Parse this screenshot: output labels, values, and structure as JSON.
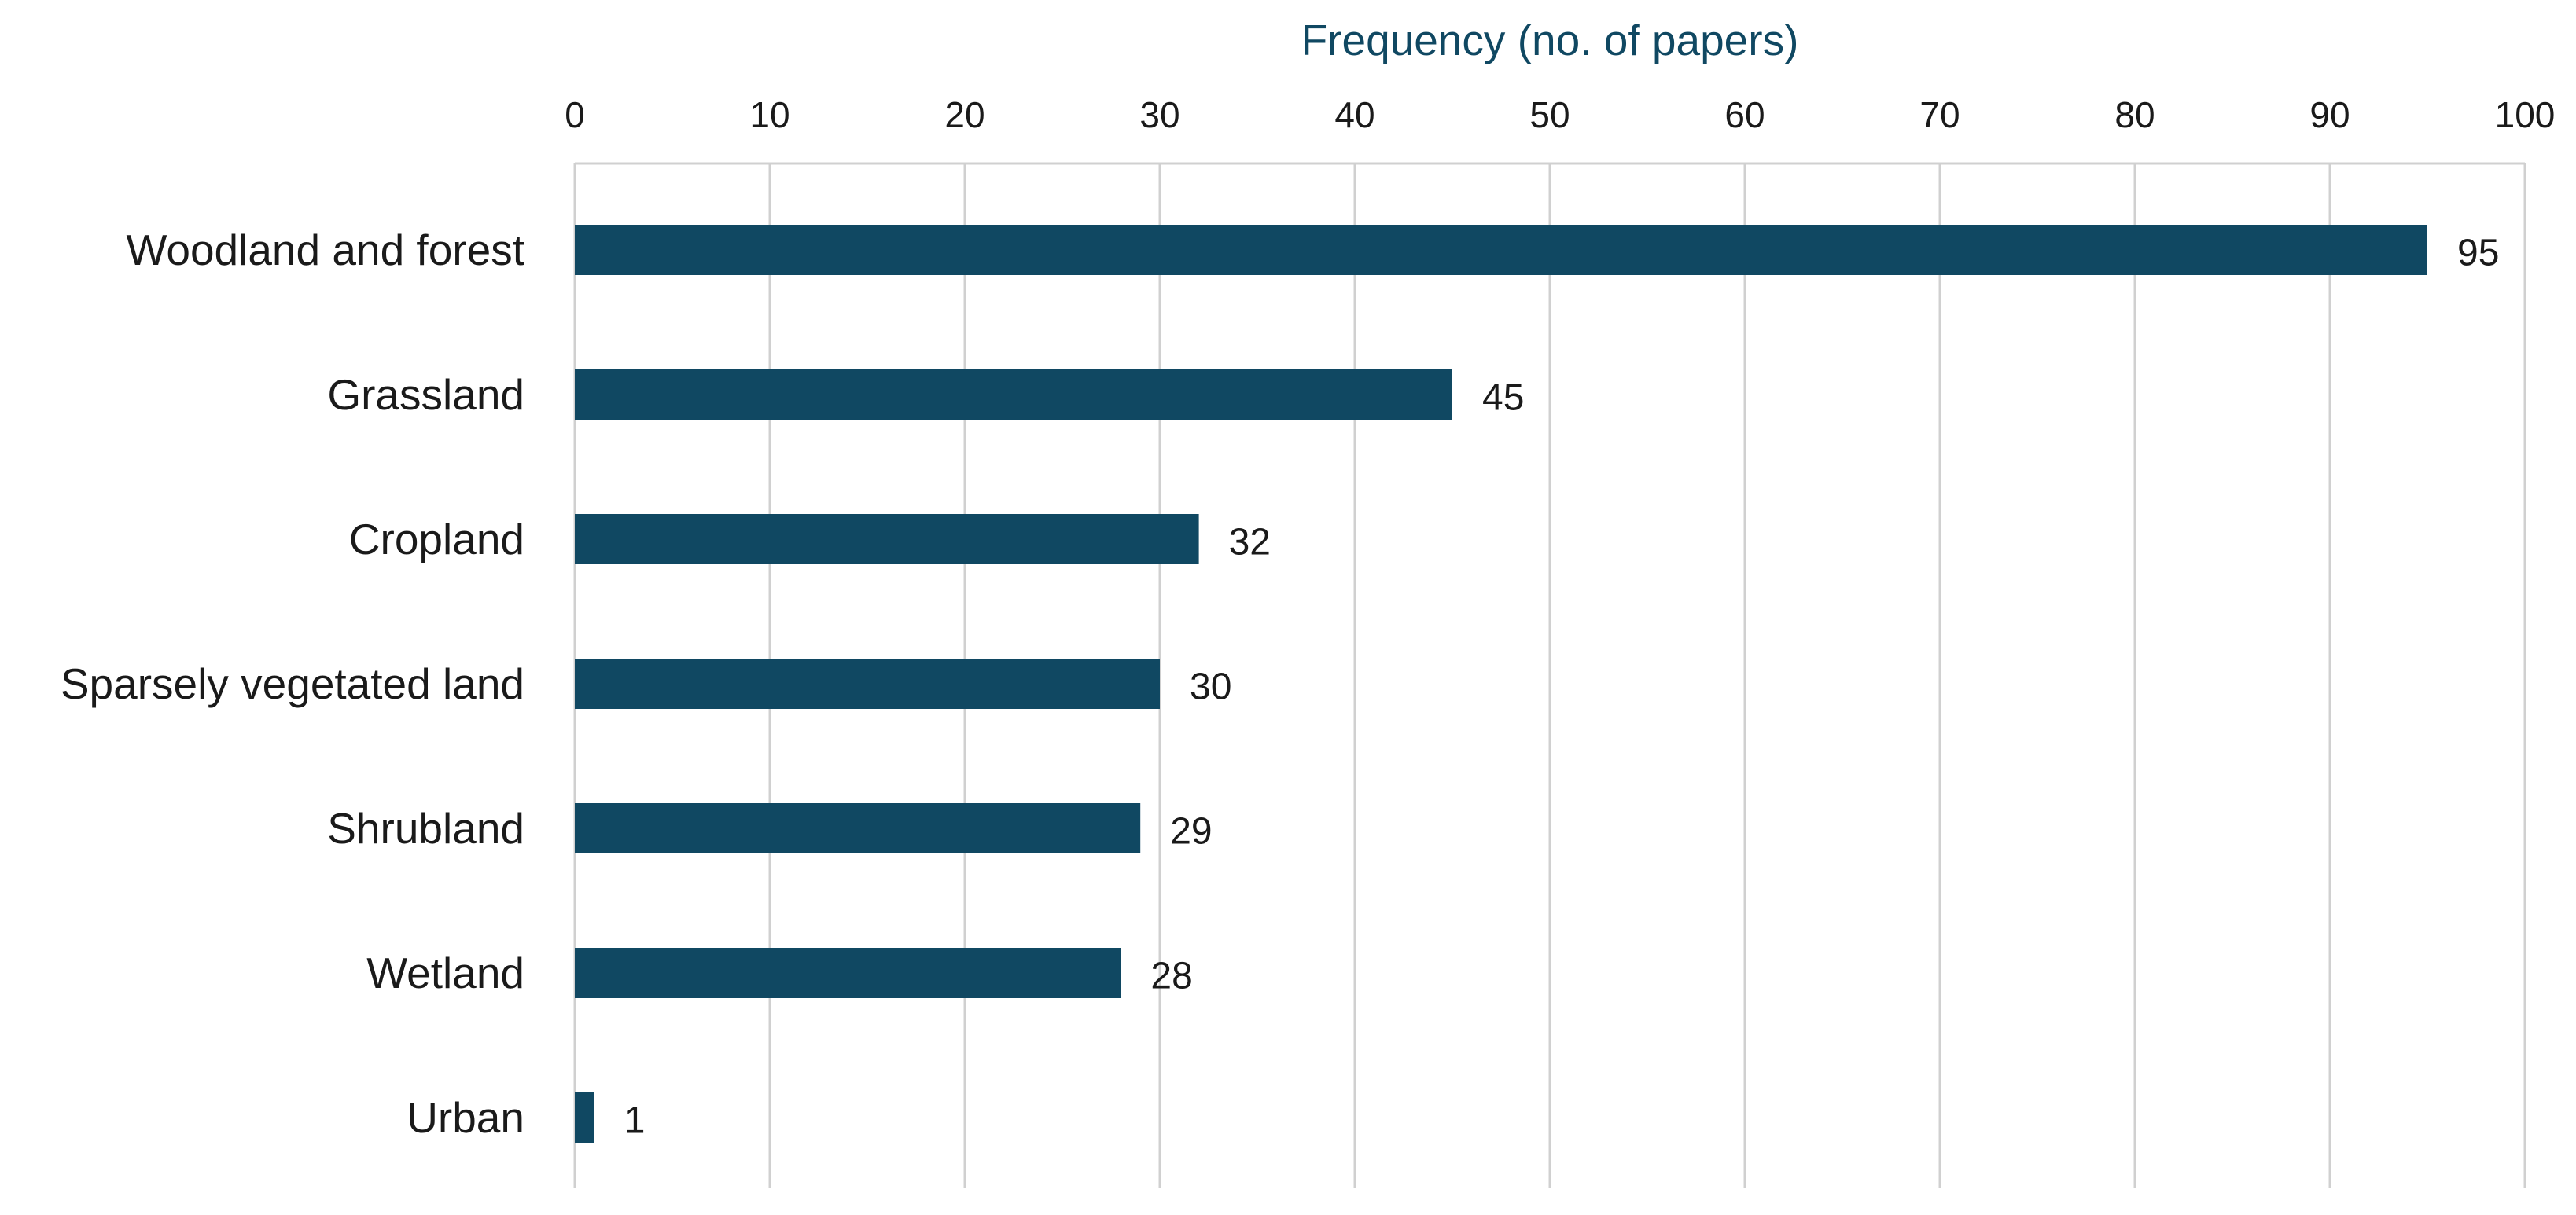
{
  "chart_data": {
    "type": "bar",
    "orientation": "horizontal",
    "categories": [
      "Woodland and forest",
      "Grassland",
      "Cropland",
      "Sparsely vegetated land",
      "Shrubland",
      "Wetland",
      "Urban"
    ],
    "values": [
      95,
      45,
      32,
      30,
      29,
      28,
      1
    ],
    "data_labels": [
      "95",
      "45",
      "32",
      "30",
      "29",
      "28",
      "1"
    ],
    "title": "",
    "xlabel": "Frequency (no. of papers)",
    "ylabel": "",
    "xlim": [
      0,
      100
    ],
    "xticks": [
      0,
      10,
      20,
      30,
      40,
      50,
      60,
      70,
      80,
      90,
      100
    ],
    "x_axis_position": "top",
    "grid": true,
    "legend": "none",
    "colors": {
      "bar": "#104862",
      "axis_title": "#104862",
      "gridline": "#d0d0d0"
    }
  }
}
